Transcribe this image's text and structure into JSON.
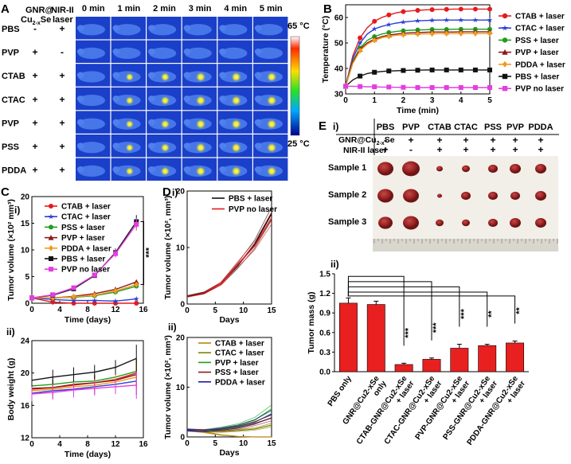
{
  "panels": {
    "A": {
      "letter": "A",
      "row_header": [
        "GNR@",
        "Cu",
        "2-x",
        "Se"
      ],
      "laser_header": [
        "NIR-II",
        "laser"
      ],
      "times": [
        "0 min",
        "1 min",
        "2 min",
        "3 min",
        "4 min",
        "5 min"
      ],
      "rows": [
        {
          "name": "PBS",
          "gnr": "-",
          "laser": "+"
        },
        {
          "name": "PVP",
          "gnr": "+",
          "laser": "-"
        },
        {
          "name": "CTAB",
          "gnr": "+",
          "laser": "+"
        },
        {
          "name": "CTAC",
          "gnr": "+",
          "laser": "+"
        },
        {
          "name": "PVP",
          "gnr": "+",
          "laser": "+"
        },
        {
          "name": "PSS",
          "gnr": "+",
          "laser": "+"
        },
        {
          "name": "PDDA",
          "gnr": "+",
          "laser": "+"
        }
      ],
      "scale_max": "65 °C",
      "scale_min": "25 °C"
    },
    "B": {
      "letter": "B"
    },
    "C": {
      "letter": "C",
      "sub_i": "i)",
      "sub_ii": "ii)"
    },
    "D": {
      "letter": "D",
      "sub_i": "i)",
      "sub_ii": "ii)"
    },
    "E": {
      "letter": "E",
      "sub_i": "i)",
      "sub_ii": "ii)",
      "columns": [
        "PBS",
        "PVP",
        "CTAB",
        "CTAC",
        "PSS",
        "PVP",
        "PDDA"
      ],
      "row1_label": [
        "GNR@Cu",
        "2-x",
        "Se"
      ],
      "row1_signs": [
        "-",
        "+",
        "+",
        "+",
        "+",
        "+",
        "+"
      ],
      "row2_label": "NIR-II laser",
      "row2_signs": [
        "+",
        "-",
        "+",
        "+",
        "+",
        "+",
        "+"
      ],
      "samples": [
        "Sample 1",
        "Sample 2",
        "Sample 3"
      ]
    }
  },
  "chart_data": [
    {
      "id": "B",
      "type": "line",
      "xlabel": "Time (min)",
      "ylabel": "Temperature (°C)",
      "xlim": [
        0,
        5
      ],
      "ylim": [
        30,
        65
      ],
      "xticks": [
        0,
        1,
        2,
        3,
        4,
        5
      ],
      "yticks": [
        30,
        40,
        50,
        60
      ],
      "legend": "right",
      "series": [
        {
          "name": "CTAB + laser",
          "color": "#e41a1c",
          "marker": "circle",
          "values": [
            33,
            45,
            52,
            56,
            58.5,
            60,
            61,
            61.8,
            62.3,
            62.6,
            62.8,
            63,
            63.1,
            63.2,
            63.2,
            63.3,
            63.3,
            63.3,
            63.3,
            63.3,
            63.3
          ]
        },
        {
          "name": "CTAC + laser",
          "color": "#2b3fd6",
          "marker": "star",
          "values": [
            33,
            44,
            50,
            53.5,
            55.5,
            56.5,
            57.2,
            57.8,
            58.2,
            58.5,
            58.7,
            58.8,
            58.9,
            59,
            59,
            59,
            59,
            59,
            59,
            59,
            59
          ]
        },
        {
          "name": "PSS + laser",
          "color": "#1e9e1e",
          "marker": "circle",
          "values": [
            33,
            43,
            48,
            51,
            52.5,
            53.5,
            54.1,
            54.5,
            54.8,
            55,
            55.1,
            55.2,
            55.3,
            55.3,
            55.3,
            55.4,
            55.4,
            55.4,
            55.4,
            55.4,
            55.4
          ]
        },
        {
          "name": "PVP + laser",
          "color": "#8b1a1a",
          "marker": "triangle",
          "values": [
            33,
            42.5,
            47.5,
            50,
            51.5,
            52.5,
            53.1,
            53.5,
            53.8,
            54,
            54.1,
            54.2,
            54.3,
            54.3,
            54.3,
            54.3,
            54.4,
            54.4,
            54.4,
            54.4,
            54.4
          ]
        },
        {
          "name": "PDDA + laser",
          "color": "#f29a1f",
          "marker": "diamond",
          "values": [
            33,
            42,
            47,
            49.5,
            51,
            52,
            52.6,
            53,
            53.2,
            53.4,
            53.5,
            53.6,
            53.6,
            53.7,
            53.7,
            53.7,
            53.7,
            53.7,
            53.7,
            53.7,
            53.7
          ]
        },
        {
          "name": "PBS + laser",
          "color": "#111111",
          "marker": "square",
          "values": [
            33,
            35.5,
            37,
            38,
            38.5,
            38.8,
            39,
            39.1,
            39.2,
            39.3,
            39.3,
            39.4,
            39.4,
            39.4,
            39.4,
            39.4,
            39.4,
            39.4,
            39.4,
            39.4,
            39.4
          ]
        },
        {
          "name": "PVP no laser",
          "color": "#e23ee2",
          "marker": "square",
          "values": [
            33,
            33,
            32.9,
            32.8,
            32.8,
            32.7,
            32.7,
            32.6,
            32.6,
            32.6,
            32.5,
            32.5,
            32.5,
            32.5,
            32.5,
            32.5,
            32.5,
            32.5,
            32.5,
            32.5,
            32.5
          ]
        }
      ]
    },
    {
      "id": "Ci",
      "type": "line",
      "xlabel": "Time (days)",
      "ylabel": "Tumor volume (×10² mm³)",
      "xlim": [
        0,
        16
      ],
      "ylim": [
        0,
        20
      ],
      "xticks": [
        0,
        4,
        8,
        12,
        16
      ],
      "yticks": [
        0,
        5,
        10,
        15,
        20
      ],
      "x": [
        0,
        3,
        6,
        9,
        12,
        15
      ],
      "annotation": "***",
      "series": [
        {
          "name": "CTAB + laser",
          "color": "#e41a1c",
          "marker": "circle",
          "values": [
            1,
            0.2,
            0,
            0,
            0,
            0
          ]
        },
        {
          "name": "CTAC + laser",
          "color": "#2b3fd6",
          "marker": "star",
          "values": [
            1,
            0.7,
            0.5,
            0.5,
            0.4,
            0.8
          ]
        },
        {
          "name": "PSS + laser",
          "color": "#1e9e1e",
          "marker": "circle",
          "values": [
            1,
            1,
            1.1,
            1.4,
            2.1,
            3.2
          ]
        },
        {
          "name": "PVP + laser",
          "color": "#8b1a1a",
          "marker": "triangle",
          "values": [
            1,
            1,
            1.3,
            1.8,
            2.6,
            4
          ]
        },
        {
          "name": "PDDA + laser",
          "color": "#f29a1f",
          "marker": "diamond",
          "values": [
            1,
            1,
            1.2,
            1.5,
            2.3,
            3.5
          ]
        },
        {
          "name": "PBS + laser",
          "color": "#111111",
          "marker": "square",
          "values": [
            1,
            1.5,
            2.7,
            5.2,
            9.5,
            15.3
          ]
        },
        {
          "name": "PVP no laser",
          "color": "#e23ee2",
          "marker": "square",
          "values": [
            1,
            1.6,
            2.9,
            5.3,
            9.3,
            14.8
          ]
        }
      ]
    },
    {
      "id": "Cii",
      "type": "line",
      "xlabel": "Time (days)",
      "ylabel": "Body weight (g)",
      "xlim": [
        0,
        16
      ],
      "ylim": [
        12,
        24
      ],
      "xticks": [
        0,
        4,
        8,
        12,
        16
      ],
      "yticks": [
        12,
        16,
        20,
        24
      ],
      "x": [
        0,
        3,
        6,
        9,
        12,
        15
      ],
      "series": [
        {
          "name": "CTAB + laser",
          "color": "#e41a1c",
          "values": [
            18,
            18.2,
            18.5,
            18.8,
            19.2,
            20
          ]
        },
        {
          "name": "CTAC + laser",
          "color": "#2b3fd6",
          "values": [
            17.5,
            17.8,
            18,
            18.3,
            18.6,
            19
          ]
        },
        {
          "name": "PSS + laser",
          "color": "#1e9e1e",
          "values": [
            18.4,
            18.6,
            18.9,
            19,
            19.5,
            20.2
          ]
        },
        {
          "name": "PVP + laser",
          "color": "#8b1a1a",
          "values": [
            18.1,
            18.2,
            18.6,
            18.8,
            19.1,
            19.8
          ]
        },
        {
          "name": "PDDA + laser",
          "color": "#f29a1f",
          "values": [
            17.8,
            18,
            18.3,
            18.5,
            18.9,
            19.5
          ]
        },
        {
          "name": "PBS + laser",
          "color": "#111111",
          "values": [
            19.1,
            19.5,
            19.8,
            20.1,
            20.7,
            21.8
          ]
        },
        {
          "name": "PVP no laser",
          "color": "#e23ee2",
          "values": [
            17.4,
            17.6,
            17.9,
            18.1,
            18.3,
            18.5
          ]
        }
      ]
    },
    {
      "id": "Di",
      "type": "line",
      "xlabel": "Days",
      "ylabel": "Tumor volume (×10², mm³)",
      "xlim": [
        0,
        15
      ],
      "ylim": [
        0,
        20
      ],
      "xticks": [
        0,
        5,
        10,
        15
      ],
      "yticks": [
        0,
        10,
        20
      ],
      "x": [
        0,
        3,
        6,
        9,
        12,
        15
      ],
      "series": [
        {
          "name": "PBS + laser",
          "color": "#111111",
          "values": [
            1.4,
            2,
            3.6,
            6.8,
            10.6,
            16
          ]
        },
        {
          "name": "PVP no laser",
          "color": "#e41a1c",
          "values": [
            1.3,
            1.9,
            3.6,
            7,
            10.3,
            15.2
          ]
        }
      ]
    },
    {
      "id": "Dii",
      "type": "line",
      "xlabel": "Days",
      "ylabel": "Tumor volume (×10², mm³)",
      "xlim": [
        0,
        15
      ],
      "ylim": [
        0,
        20
      ],
      "xticks": [
        0,
        5,
        10,
        15
      ],
      "yticks": [
        0,
        10,
        20
      ],
      "x": [
        0,
        3,
        6,
        9,
        12,
        15
      ],
      "series": [
        {
          "name": "CTAB + laser",
          "color": "#b8860b",
          "values": [
            1.4,
            1,
            0.4,
            0.1,
            0,
            0
          ]
        },
        {
          "name": "CTAC + laser",
          "color": "#808000",
          "values": [
            1.4,
            1.2,
            1.1,
            1.3,
            1.6,
            2.4
          ]
        },
        {
          "name": "PVP + laser",
          "color": "#1e9e1e",
          "values": [
            1.4,
            1.3,
            1.7,
            2.3,
            3.4,
            5.6
          ]
        },
        {
          "name": "PSS + laser",
          "color": "#8b1a1a",
          "values": [
            1.4,
            1.3,
            1.4,
            1.8,
            2.7,
            3.8
          ]
        },
        {
          "name": "PDDA + laser",
          "color": "#1a1aa8",
          "values": [
            1.4,
            1.2,
            1.6,
            2.1,
            3,
            4.6
          ]
        }
      ]
    },
    {
      "id": "Eii",
      "type": "bar",
      "ylabel": "Tumor mass (g)",
      "ylim": [
        0,
        1.5
      ],
      "yticks": [
        0.0,
        0.3,
        0.6,
        0.9,
        1.2,
        1.5
      ],
      "color": "#e82020",
      "categories": [
        [
          "PBS only"
        ],
        [
          "GNR@Cu2-xSe",
          "only"
        ],
        [
          "CTAB-GNR@Cu2-xSe",
          "+ laser"
        ],
        [
          "CTAC-GNR@Cu2-xSe",
          "+ laser"
        ],
        [
          "PVP-GNR@Cu2-xSe",
          "+ laser"
        ],
        [
          "PSS-GNR@Cu2-xSe",
          "+ laser"
        ],
        [
          "PDDA-GNR@Cu2-xSe",
          "+ laser"
        ]
      ],
      "values": [
        1.05,
        1.03,
        0.11,
        0.19,
        0.36,
        0.4,
        0.44
      ],
      "errors": [
        0.08,
        0.05,
        0.02,
        0.02,
        0.06,
        0.02,
        0.03
      ],
      "significance": [
        "",
        "",
        "***",
        "***",
        "***",
        "**",
        "**"
      ]
    }
  ]
}
